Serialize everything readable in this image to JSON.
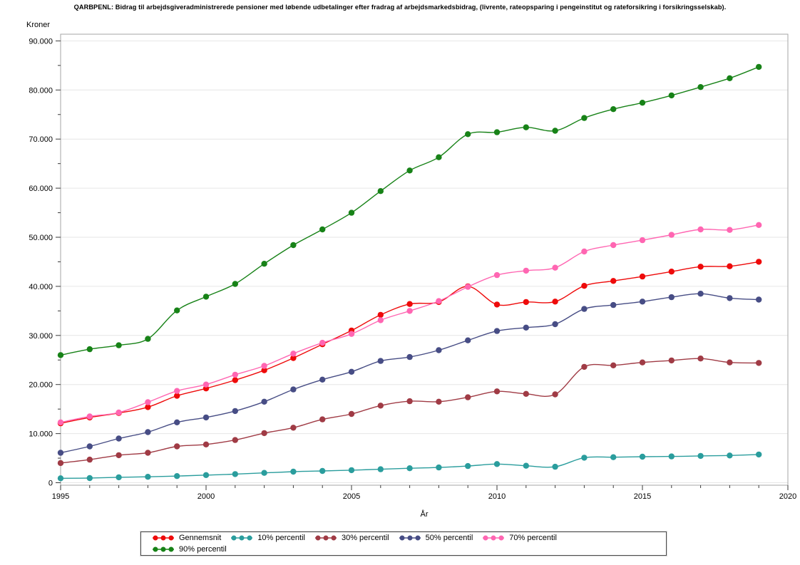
{
  "header": {
    "title": "QARBPENL:  Bidrag til arbejdsgiveradministrerede pensioner med løbende udbetalinger efter fradrag af arbejdsmarkedsbidrag, (livrente, rateopsparing i pengeinstitut og rateforsikring i forsikringsselskab)."
  },
  "chart_data": {
    "type": "line",
    "title": "QARBPENL:  Bidrag til arbejdsgiveradministrerede pensioner med løbende udbetalinger efter fradrag af arbejdsmarkedsbidrag, (livrente, rateopsparing i pengeinstitut og rateforsikring i forsikringsselskab).",
    "ylabel": "Kroner",
    "xlabel": "År",
    "ylim": [
      0,
      90000
    ],
    "ytick_step": 10000,
    "ytick_minor_step": 5000,
    "xlim": [
      1995,
      2020
    ],
    "xticks": [
      1995,
      2000,
      2005,
      2010,
      2015,
      2020
    ],
    "grid": "horizontal",
    "legend_position": "bottom",
    "marker": "circle",
    "x": [
      1995,
      1996,
      1997,
      1998,
      1999,
      2000,
      2001,
      2002,
      2003,
      2004,
      2005,
      2006,
      2007,
      2008,
      2009,
      2010,
      2011,
      2012,
      2013,
      2014,
      2015,
      2016,
      2017,
      2018,
      2019
    ],
    "series": [
      {
        "name": "Gennemsnit",
        "color": "#ee0a0a",
        "values": [
          12100,
          13300,
          14200,
          15400,
          17700,
          19200,
          20900,
          22900,
          25400,
          28200,
          31000,
          34200,
          36400,
          36800,
          40000,
          36300,
          36800,
          36900,
          40100,
          41100,
          42000,
          43000,
          44000,
          44100,
          45000
        ]
      },
      {
        "name": "10% percentil",
        "color": "#2a9d9d",
        "values": [
          900,
          950,
          1100,
          1200,
          1350,
          1550,
          1750,
          2000,
          2250,
          2400,
          2550,
          2750,
          2950,
          3100,
          3400,
          3800,
          3450,
          3250,
          5100,
          5200,
          5300,
          5350,
          5450,
          5550,
          5750
        ]
      },
      {
        "name": "30% percentil",
        "color": "#a03b45",
        "values": [
          4000,
          4700,
          5600,
          6100,
          7400,
          7800,
          8700,
          10100,
          11200,
          12900,
          14000,
          15700,
          16600,
          16500,
          17400,
          18600,
          18100,
          18000,
          23600,
          23900,
          24500,
          24900,
          25300,
          24500,
          24400
        ]
      },
      {
        "name": "50% percentil",
        "color": "#474d85",
        "values": [
          6100,
          7400,
          9000,
          10300,
          12300,
          13300,
          14600,
          16500,
          19000,
          21000,
          22600,
          24800,
          25600,
          27000,
          29000,
          30900,
          31600,
          32300,
          35400,
          36200,
          36900,
          37800,
          38500,
          37600,
          37300
        ]
      },
      {
        "name": "70% percentil",
        "color": "#ff66b2",
        "values": [
          12300,
          13500,
          14300,
          16400,
          18700,
          20000,
          22000,
          23800,
          26300,
          28500,
          30300,
          33100,
          35000,
          37000,
          39900,
          42300,
          43200,
          43800,
          47100,
          48400,
          49400,
          50500,
          51600,
          51500,
          52500
        ]
      },
      {
        "name": "90% percentil",
        "color": "#178217",
        "values": [
          26000,
          27200,
          28000,
          29300,
          35100,
          37900,
          40500,
          44600,
          48400,
          51600,
          55000,
          59400,
          63600,
          66300,
          71000,
          71400,
          72400,
          71700,
          74300,
          76100,
          77400,
          78900,
          80600,
          82400,
          84700
        ]
      }
    ]
  }
}
